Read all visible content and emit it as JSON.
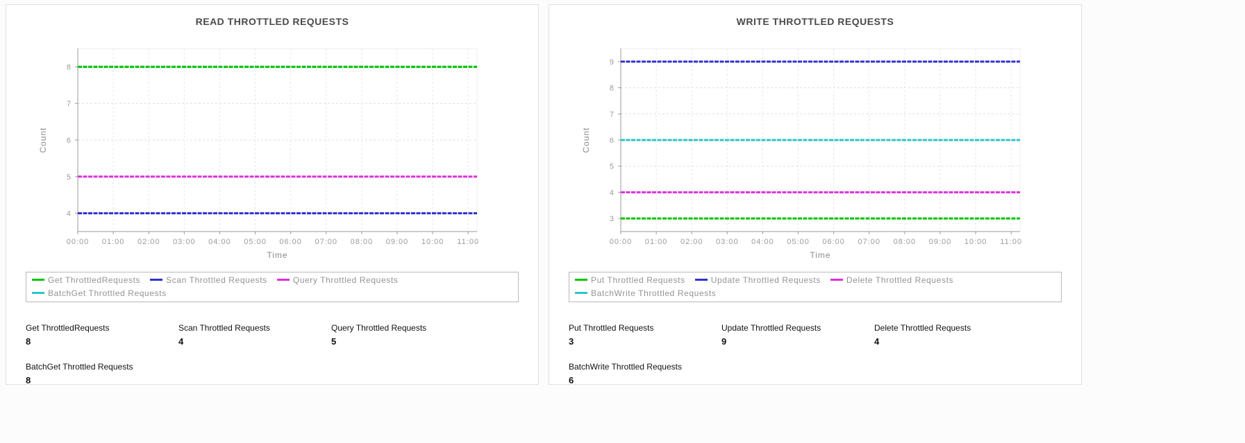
{
  "chart_data": [
    {
      "type": "line",
      "title": "READ THROTTLED REQUESTS",
      "xlabel": "Time",
      "ylabel": "Count",
      "x_tick_labels": [
        "00:00",
        "01:00",
        "02:00",
        "03:00",
        "04:00",
        "05:00",
        "06:00",
        "07:00",
        "08:00",
        "09:00",
        "10:00",
        "11:00"
      ],
      "x_max": 11.25,
      "y_ticks": [
        4,
        5,
        6,
        7,
        8
      ],
      "ylim": [
        3.5,
        8.5
      ],
      "grid": true,
      "legend_position": "bottom",
      "series": [
        {
          "name": "Get ThrottledRequests",
          "color": "#00c400",
          "value": 8
        },
        {
          "name": "Scan Throttled Requests",
          "color": "#3030cf",
          "value": 4
        },
        {
          "name": "Query Throttled Requests",
          "color": "#dd30dd",
          "value": 5
        },
        {
          "name": "BatchGet Throttled Requests",
          "color": "#2cc4c4",
          "value": 8
        }
      ],
      "stats": [
        {
          "label": "Get ThrottledRequests",
          "value": "8"
        },
        {
          "label": "Scan Throttled Requests",
          "value": "4"
        },
        {
          "label": "Query Throttled Requests",
          "value": "5"
        },
        {
          "label": "BatchGet Throttled Requests",
          "value": "8"
        }
      ]
    },
    {
      "type": "line",
      "title": "WRITE THROTTLED REQUESTS",
      "xlabel": "Time",
      "ylabel": "Count",
      "x_tick_labels": [
        "00:00",
        "01:00",
        "02:00",
        "03:00",
        "04:00",
        "05:00",
        "06:00",
        "07:00",
        "08:00",
        "09:00",
        "10:00",
        "11:00"
      ],
      "x_max": 11.25,
      "y_ticks": [
        3,
        4,
        5,
        6,
        7,
        8,
        9
      ],
      "ylim": [
        2.5,
        9.5
      ],
      "grid": true,
      "legend_position": "bottom",
      "series": [
        {
          "name": "Put Throttled Requests",
          "color": "#00c400",
          "value": 3
        },
        {
          "name": "Update Throttled Requests",
          "color": "#3030cf",
          "value": 9
        },
        {
          "name": "Delete Throttled Requests",
          "color": "#dd30dd",
          "value": 4
        },
        {
          "name": "BatchWrite Throttled Requests",
          "color": "#2cc4c4",
          "value": 6
        }
      ],
      "stats": [
        {
          "label": "Put Throttled Requests",
          "value": "3"
        },
        {
          "label": "Update Throttled Requests",
          "value": "9"
        },
        {
          "label": "Delete Throttled Requests",
          "value": "4"
        },
        {
          "label": "BatchWrite Throttled Requests",
          "value": "6"
        }
      ]
    }
  ]
}
